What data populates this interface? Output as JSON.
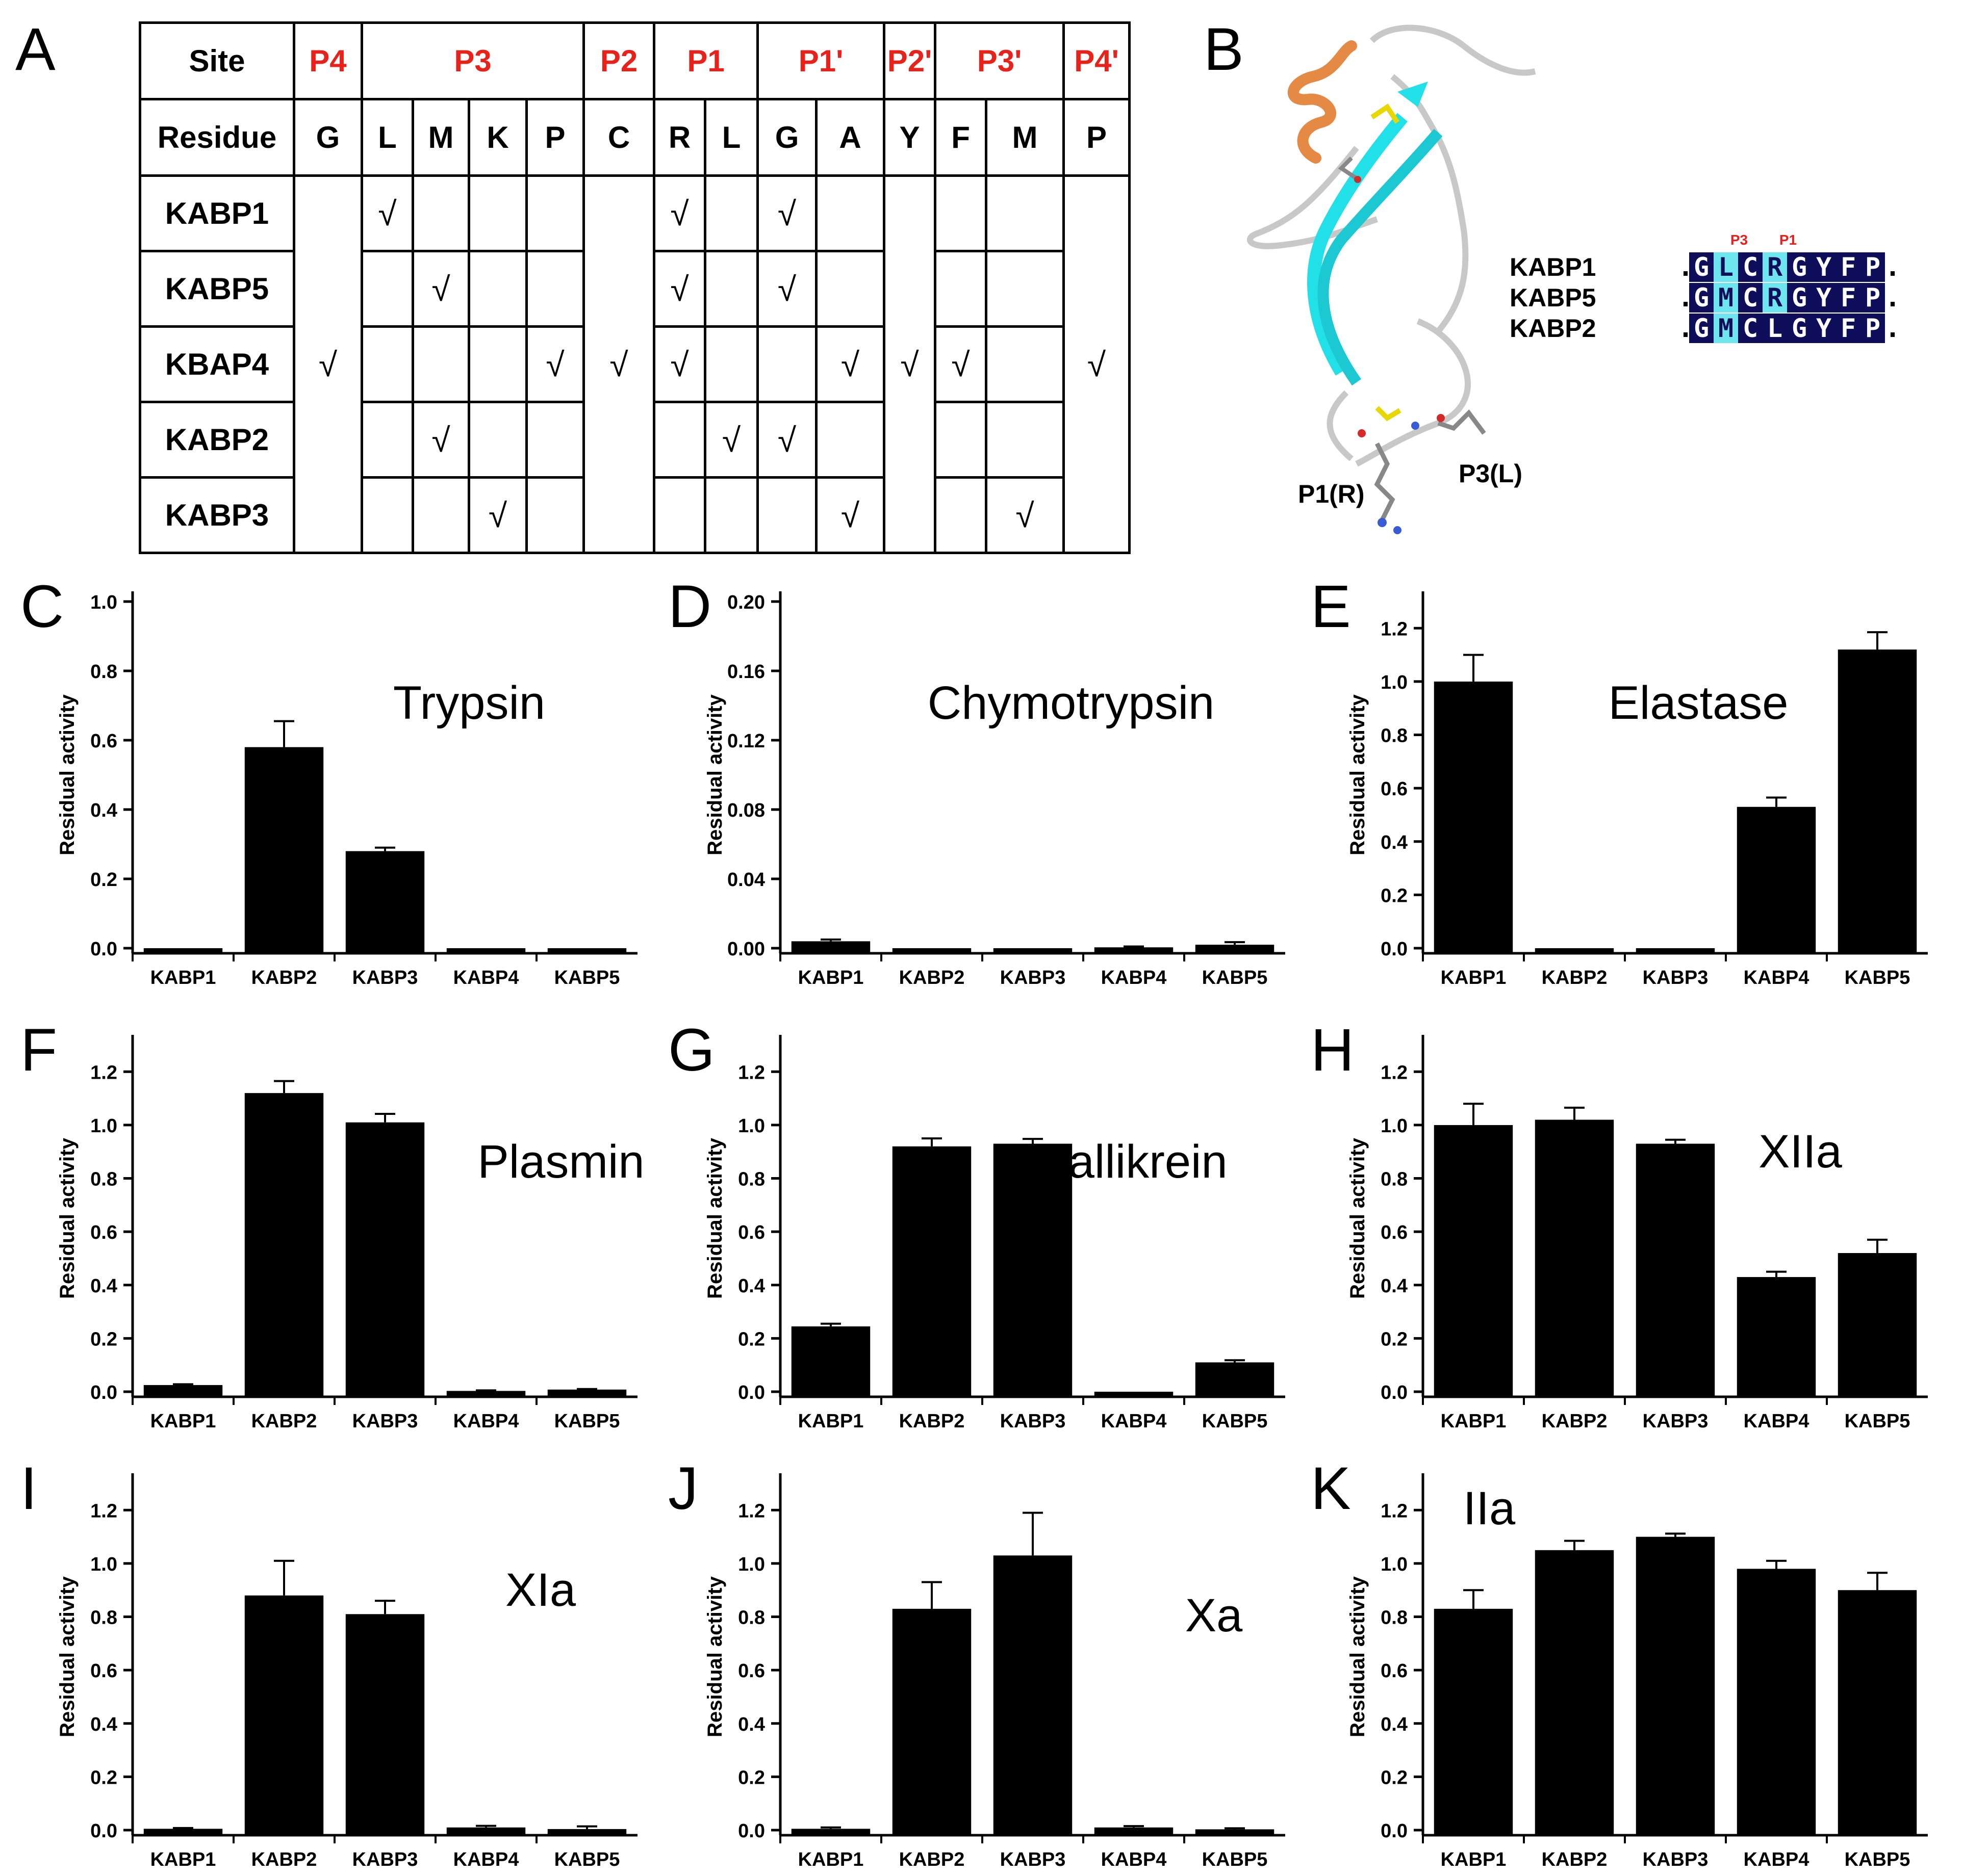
{
  "panel_labels": {
    "A": "A",
    "B": "B"
  },
  "table": {
    "site_header": "Site",
    "residue_header": "Residue",
    "sites": [
      "P4",
      "P3",
      "P2",
      "P1",
      "P1'",
      "P2'",
      "P3'",
      "P4'"
    ],
    "residues": [
      "G",
      "L",
      "M",
      "K",
      "P",
      "C",
      "R",
      "L",
      "G",
      "A",
      "Y",
      "F",
      "M",
      "P"
    ],
    "rows": [
      "KABP1",
      "KABP5",
      "KBAP4",
      "KABP2",
      "KABP3"
    ],
    "tick": "√"
  },
  "structure": {
    "p1_label": "P1(R)",
    "p3_label": "P3(L)",
    "alignment_marks": {
      "p3": "P3",
      "p1": "P1"
    },
    "alignment": [
      {
        "name": "KABP1",
        "seq": "GLCRGYFP"
      },
      {
        "name": "KABP5",
        "seq": "GMCRGYFP"
      },
      {
        "name": "KABP2",
        "seq": "GMCLGYFP"
      }
    ],
    "colors": {
      "ribbon_sheet": "#22e0e8",
      "ribbon_helix": "#e58a45",
      "coil": "#c8c8c8",
      "dark": "#0e0e5a",
      "light": "#6ee6f0"
    }
  },
  "chart_data": [
    {
      "panel": "C",
      "type": "bar",
      "title": "Trypsin",
      "ylabel": "Residual activity",
      "categories": [
        "KABP1",
        "KABP2",
        "KABP3",
        "KABP4",
        "KABP5"
      ],
      "values": [
        0,
        0.58,
        0.28,
        0,
        0
      ],
      "errors": [
        0,
        0.075,
        0.01,
        0,
        0
      ],
      "ylim": [
        0,
        1.0
      ],
      "yticks": [
        "0.0",
        "0.2",
        "0.4",
        "0.6",
        "0.8",
        "1.0"
      ]
    },
    {
      "panel": "D",
      "type": "bar",
      "title": "Chymotrypsin",
      "ylabel": "Residual activity",
      "categories": [
        "KABP1",
        "KABP2",
        "KABP3",
        "KABP4",
        "KABP5"
      ],
      "values": [
        0.004,
        0,
        0,
        0.0005,
        0.002
      ],
      "errors": [
        0.001,
        0,
        0,
        0.0005,
        0.0015
      ],
      "ylim": [
        0,
        0.2
      ],
      "yticks": [
        "0.00",
        "0.04",
        "0.08",
        "0.12",
        "0.16",
        "0.20"
      ]
    },
    {
      "panel": "E",
      "type": "bar",
      "title": "Elastase",
      "ylabel": "Residual activity",
      "categories": [
        "KABP1",
        "KABP2",
        "KABP3",
        "KABP4",
        "KABP5"
      ],
      "values": [
        1.0,
        0,
        0,
        0.53,
        1.12
      ],
      "errors": [
        0.1,
        0,
        0,
        0.035,
        0.065
      ],
      "ylim": [
        0,
        1.3
      ],
      "yticks": [
        "0.0",
        "0.2",
        "0.4",
        "0.6",
        "0.8",
        "1.0",
        "1.2"
      ]
    },
    {
      "panel": "F",
      "type": "bar",
      "title": "Plasmin",
      "ylabel": "Residual activity",
      "categories": [
        "KABP1",
        "KABP2",
        "KABP3",
        "KABP4",
        "KABP5"
      ],
      "values": [
        0.025,
        1.12,
        1.01,
        0.003,
        0.008
      ],
      "errors": [
        0.003,
        0.045,
        0.032,
        0.002,
        0.002
      ],
      "ylim": [
        0,
        1.3
      ],
      "yticks": [
        "0.0",
        "0.2",
        "0.4",
        "0.6",
        "0.8",
        "1.0",
        "1.2"
      ]
    },
    {
      "panel": "G",
      "type": "bar",
      "title": "Kallikrein",
      "ylabel": "Residual activity",
      "categories": [
        "KABP1",
        "KABP2",
        "KABP3",
        "KABP4",
        "KABP5"
      ],
      "values": [
        0.245,
        0.92,
        0.93,
        0,
        0.11
      ],
      "errors": [
        0.01,
        0.03,
        0.018,
        0,
        0.008
      ],
      "ylim": [
        0,
        1.3
      ],
      "yticks": [
        "0.0",
        "0.2",
        "0.4",
        "0.6",
        "0.8",
        "1.0",
        "1.2"
      ]
    },
    {
      "panel": "H",
      "type": "bar",
      "title": "XIIa",
      "ylabel": "Residual activity",
      "categories": [
        "KABP1",
        "KABP2",
        "KABP3",
        "KABP4",
        "KABP5"
      ],
      "values": [
        1.0,
        1.02,
        0.93,
        0.43,
        0.52
      ],
      "errors": [
        0.08,
        0.045,
        0.015,
        0.02,
        0.05
      ],
      "ylim": [
        0,
        1.3
      ],
      "yticks": [
        "0.0",
        "0.2",
        "0.4",
        "0.6",
        "0.8",
        "1.0",
        "1.2"
      ]
    },
    {
      "panel": "I",
      "type": "bar",
      "title": "XIa",
      "ylabel": "Residual activity",
      "categories": [
        "KABP1",
        "KABP2",
        "KABP3",
        "KABP4",
        "KABP5"
      ],
      "values": [
        0.005,
        0.88,
        0.81,
        0.01,
        0.004
      ],
      "errors": [
        0.003,
        0.13,
        0.05,
        0.006,
        0.01
      ],
      "ylim": [
        0,
        1.3
      ],
      "yticks": [
        "0.0",
        "0.2",
        "0.4",
        "0.6",
        "0.8",
        "1.0",
        "1.2"
      ]
    },
    {
      "panel": "J",
      "type": "bar",
      "title": "Xa",
      "ylabel": "Residual activity",
      "categories": [
        "KABP1",
        "KABP2",
        "KABP3",
        "KABP4",
        "KABP5"
      ],
      "values": [
        0.005,
        0.83,
        1.03,
        0.01,
        0.003
      ],
      "errors": [
        0.005,
        0.1,
        0.16,
        0.005,
        0.004
      ],
      "ylim": [
        0,
        1.3
      ],
      "yticks": [
        "0.0",
        "0.2",
        "0.4",
        "0.6",
        "0.8",
        "1.0",
        "1.2"
      ]
    },
    {
      "panel": "K",
      "type": "bar",
      "title": "IIa",
      "ylabel": "Residual activity",
      "categories": [
        "KABP1",
        "KABP2",
        "KABP3",
        "KABP4",
        "KABP5"
      ],
      "values": [
        0.83,
        1.05,
        1.1,
        0.98,
        0.9
      ],
      "errors": [
        0.07,
        0.035,
        0.012,
        0.03,
        0.065
      ],
      "ylim": [
        0,
        1.3
      ],
      "yticks": [
        "0.0",
        "0.2",
        "0.4",
        "0.6",
        "0.8",
        "1.0",
        "1.2"
      ]
    }
  ]
}
